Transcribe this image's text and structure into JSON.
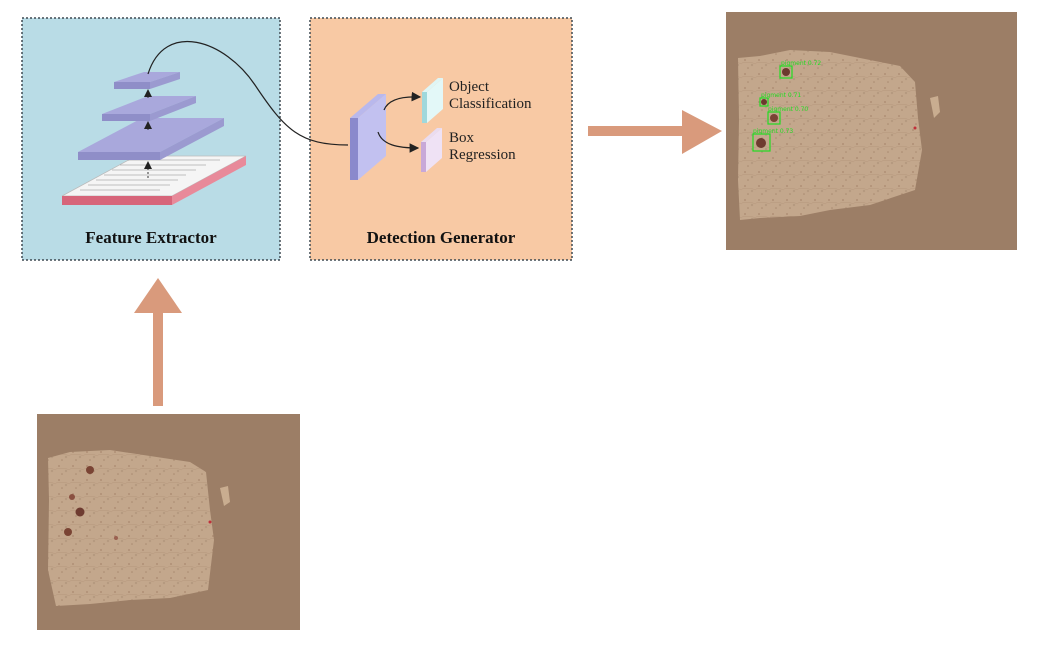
{
  "feature_extractor": {
    "title": "Feature Extractor"
  },
  "detection_generator": {
    "title": "Detection Generator",
    "outputs": [
      "Object\nClassification",
      "Box\nRegression"
    ]
  },
  "detections": [
    {
      "label": "pigment 0.72"
    },
    {
      "label": "pigment 0.71"
    },
    {
      "label": "pigment 0.70"
    },
    {
      "label": "pigment 0.73"
    }
  ],
  "colors": {
    "arrow": "#d99a7c",
    "image_bg": "#9c7e66",
    "skin": "#c4a88c",
    "detection_box": "#22dd22",
    "feature_layer": "#a9a8dc",
    "fe_panel": "#b9dce6",
    "dg_panel": "#f8c9a4"
  }
}
